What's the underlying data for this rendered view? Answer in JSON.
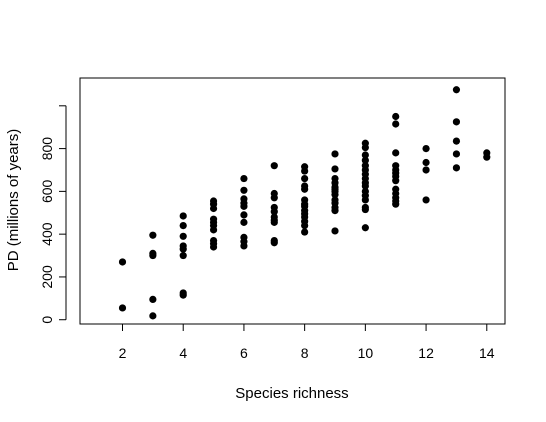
{
  "chart_data": {
    "type": "scatter",
    "title": "",
    "xlabel": "Species richness",
    "ylabel": "PD (millions of years)",
    "xlim": [
      0.6,
      14.6
    ],
    "ylim": [
      -20,
      1130
    ],
    "x_ticks": [
      2,
      4,
      6,
      8,
      10,
      12,
      14
    ],
    "y_ticks": [
      0,
      200,
      400,
      600,
      800,
      1000
    ],
    "y_tick_labels": [
      "0",
      "200",
      "400",
      "600",
      "800",
      ""
    ],
    "grid": false,
    "legend": "none",
    "marker_color": "#000000",
    "series": [
      {
        "points": [
          [
            2,
            270
          ],
          [
            2,
            55
          ],
          [
            3,
            395
          ],
          [
            3,
            310
          ],
          [
            3,
            300
          ],
          [
            3,
            95
          ],
          [
            3,
            18
          ],
          [
            4,
            485
          ],
          [
            4,
            440
          ],
          [
            4,
            390
          ],
          [
            4,
            345
          ],
          [
            4,
            330
          ],
          [
            4,
            300
          ],
          [
            4,
            125
          ],
          [
            4,
            115
          ],
          [
            5,
            555
          ],
          [
            5,
            540
          ],
          [
            5,
            520
          ],
          [
            5,
            470
          ],
          [
            5,
            455
          ],
          [
            5,
            440
          ],
          [
            5,
            420
          ],
          [
            5,
            370
          ],
          [
            5,
            355
          ],
          [
            5,
            340
          ],
          [
            6,
            660
          ],
          [
            6,
            605
          ],
          [
            6,
            565
          ],
          [
            6,
            545
          ],
          [
            6,
            530
          ],
          [
            6,
            490
          ],
          [
            6,
            455
          ],
          [
            6,
            385
          ],
          [
            6,
            365
          ],
          [
            6,
            345
          ],
          [
            7,
            720
          ],
          [
            7,
            590
          ],
          [
            7,
            570
          ],
          [
            7,
            525
          ],
          [
            7,
            505
          ],
          [
            7,
            480
          ],
          [
            7,
            465
          ],
          [
            7,
            455
          ],
          [
            7,
            370
          ],
          [
            7,
            360
          ],
          [
            8,
            715
          ],
          [
            8,
            695
          ],
          [
            8,
            660
          ],
          [
            8,
            625
          ],
          [
            8,
            610
          ],
          [
            8,
            560
          ],
          [
            8,
            540
          ],
          [
            8,
            530
          ],
          [
            8,
            510
          ],
          [
            8,
            495
          ],
          [
            8,
            480
          ],
          [
            8,
            460
          ],
          [
            8,
            440
          ],
          [
            8,
            410
          ],
          [
            9,
            775
          ],
          [
            9,
            705
          ],
          [
            9,
            660
          ],
          [
            9,
            640
          ],
          [
            9,
            620
          ],
          [
            9,
            610
          ],
          [
            9,
            600
          ],
          [
            9,
            585
          ],
          [
            9,
            560
          ],
          [
            9,
            545
          ],
          [
            9,
            525
          ],
          [
            9,
            510
          ],
          [
            9,
            415
          ],
          [
            10,
            825
          ],
          [
            10,
            805
          ],
          [
            10,
            770
          ],
          [
            10,
            745
          ],
          [
            10,
            720
          ],
          [
            10,
            700
          ],
          [
            10,
            680
          ],
          [
            10,
            660
          ],
          [
            10,
            640
          ],
          [
            10,
            625
          ],
          [
            10,
            600
          ],
          [
            10,
            580
          ],
          [
            10,
            560
          ],
          [
            10,
            525
          ],
          [
            10,
            515
          ],
          [
            10,
            430
          ],
          [
            11,
            950
          ],
          [
            11,
            915
          ],
          [
            11,
            780
          ],
          [
            11,
            720
          ],
          [
            11,
            700
          ],
          [
            11,
            685
          ],
          [
            11,
            670
          ],
          [
            11,
            650
          ],
          [
            11,
            610
          ],
          [
            11,
            590
          ],
          [
            11,
            570
          ],
          [
            11,
            555
          ],
          [
            11,
            540
          ],
          [
            12,
            800
          ],
          [
            12,
            735
          ],
          [
            12,
            700
          ],
          [
            12,
            560
          ],
          [
            13,
            1075
          ],
          [
            13,
            925
          ],
          [
            13,
            835
          ],
          [
            13,
            775
          ],
          [
            13,
            710
          ],
          [
            14,
            780
          ],
          [
            14,
            760
          ]
        ]
      }
    ]
  }
}
